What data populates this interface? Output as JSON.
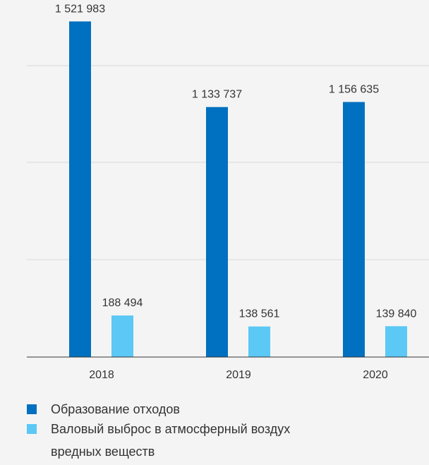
{
  "chart_data": {
    "type": "bar",
    "categories": [
      "2018",
      "2019",
      "2020"
    ],
    "series": [
      {
        "name": "Образование отходов",
        "color": "#0070c0",
        "values": [
          1521983,
          1133737,
          1156635
        ],
        "labels": [
          "1 521 983",
          "1 133 737",
          "1 156 635"
        ]
      },
      {
        "name": "Валовый выброс в атмосферный воздух вредных веществ",
        "color": "#5bc8f5",
        "values": [
          188494,
          138561,
          139840
        ],
        "labels": [
          "188 494",
          "138 561",
          "139 840"
        ]
      }
    ],
    "ylim": [
      0,
      1600000
    ],
    "grid": true,
    "legend_position": "bottom"
  }
}
